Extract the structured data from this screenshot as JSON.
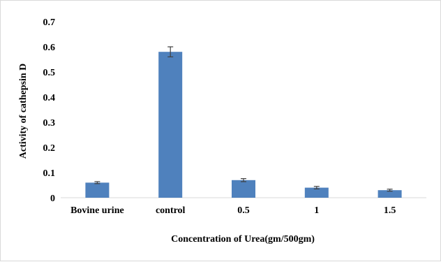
{
  "chart_data": {
    "type": "bar",
    "categories": [
      "Bovine urine",
      "control",
      "0.5",
      "1",
      "1.5"
    ],
    "values": [
      0.06,
      0.58,
      0.07,
      0.04,
      0.03
    ],
    "error": [
      0.004,
      0.02,
      0.006,
      0.005,
      0.004
    ],
    "xlabel": "Concentration of Urea(gm/500gm)",
    "ylabel": "Activity of cathepsin D",
    "ylim": [
      0,
      0.7
    ],
    "yticks": [
      "0",
      "0.1",
      "0.2",
      "0.3",
      "0.4",
      "0.5",
      "0.6",
      "0.7"
    ],
    "grid": false,
    "legend": "none",
    "bar_color": "#4f81bd",
    "errorbar_color": "#404040"
  }
}
